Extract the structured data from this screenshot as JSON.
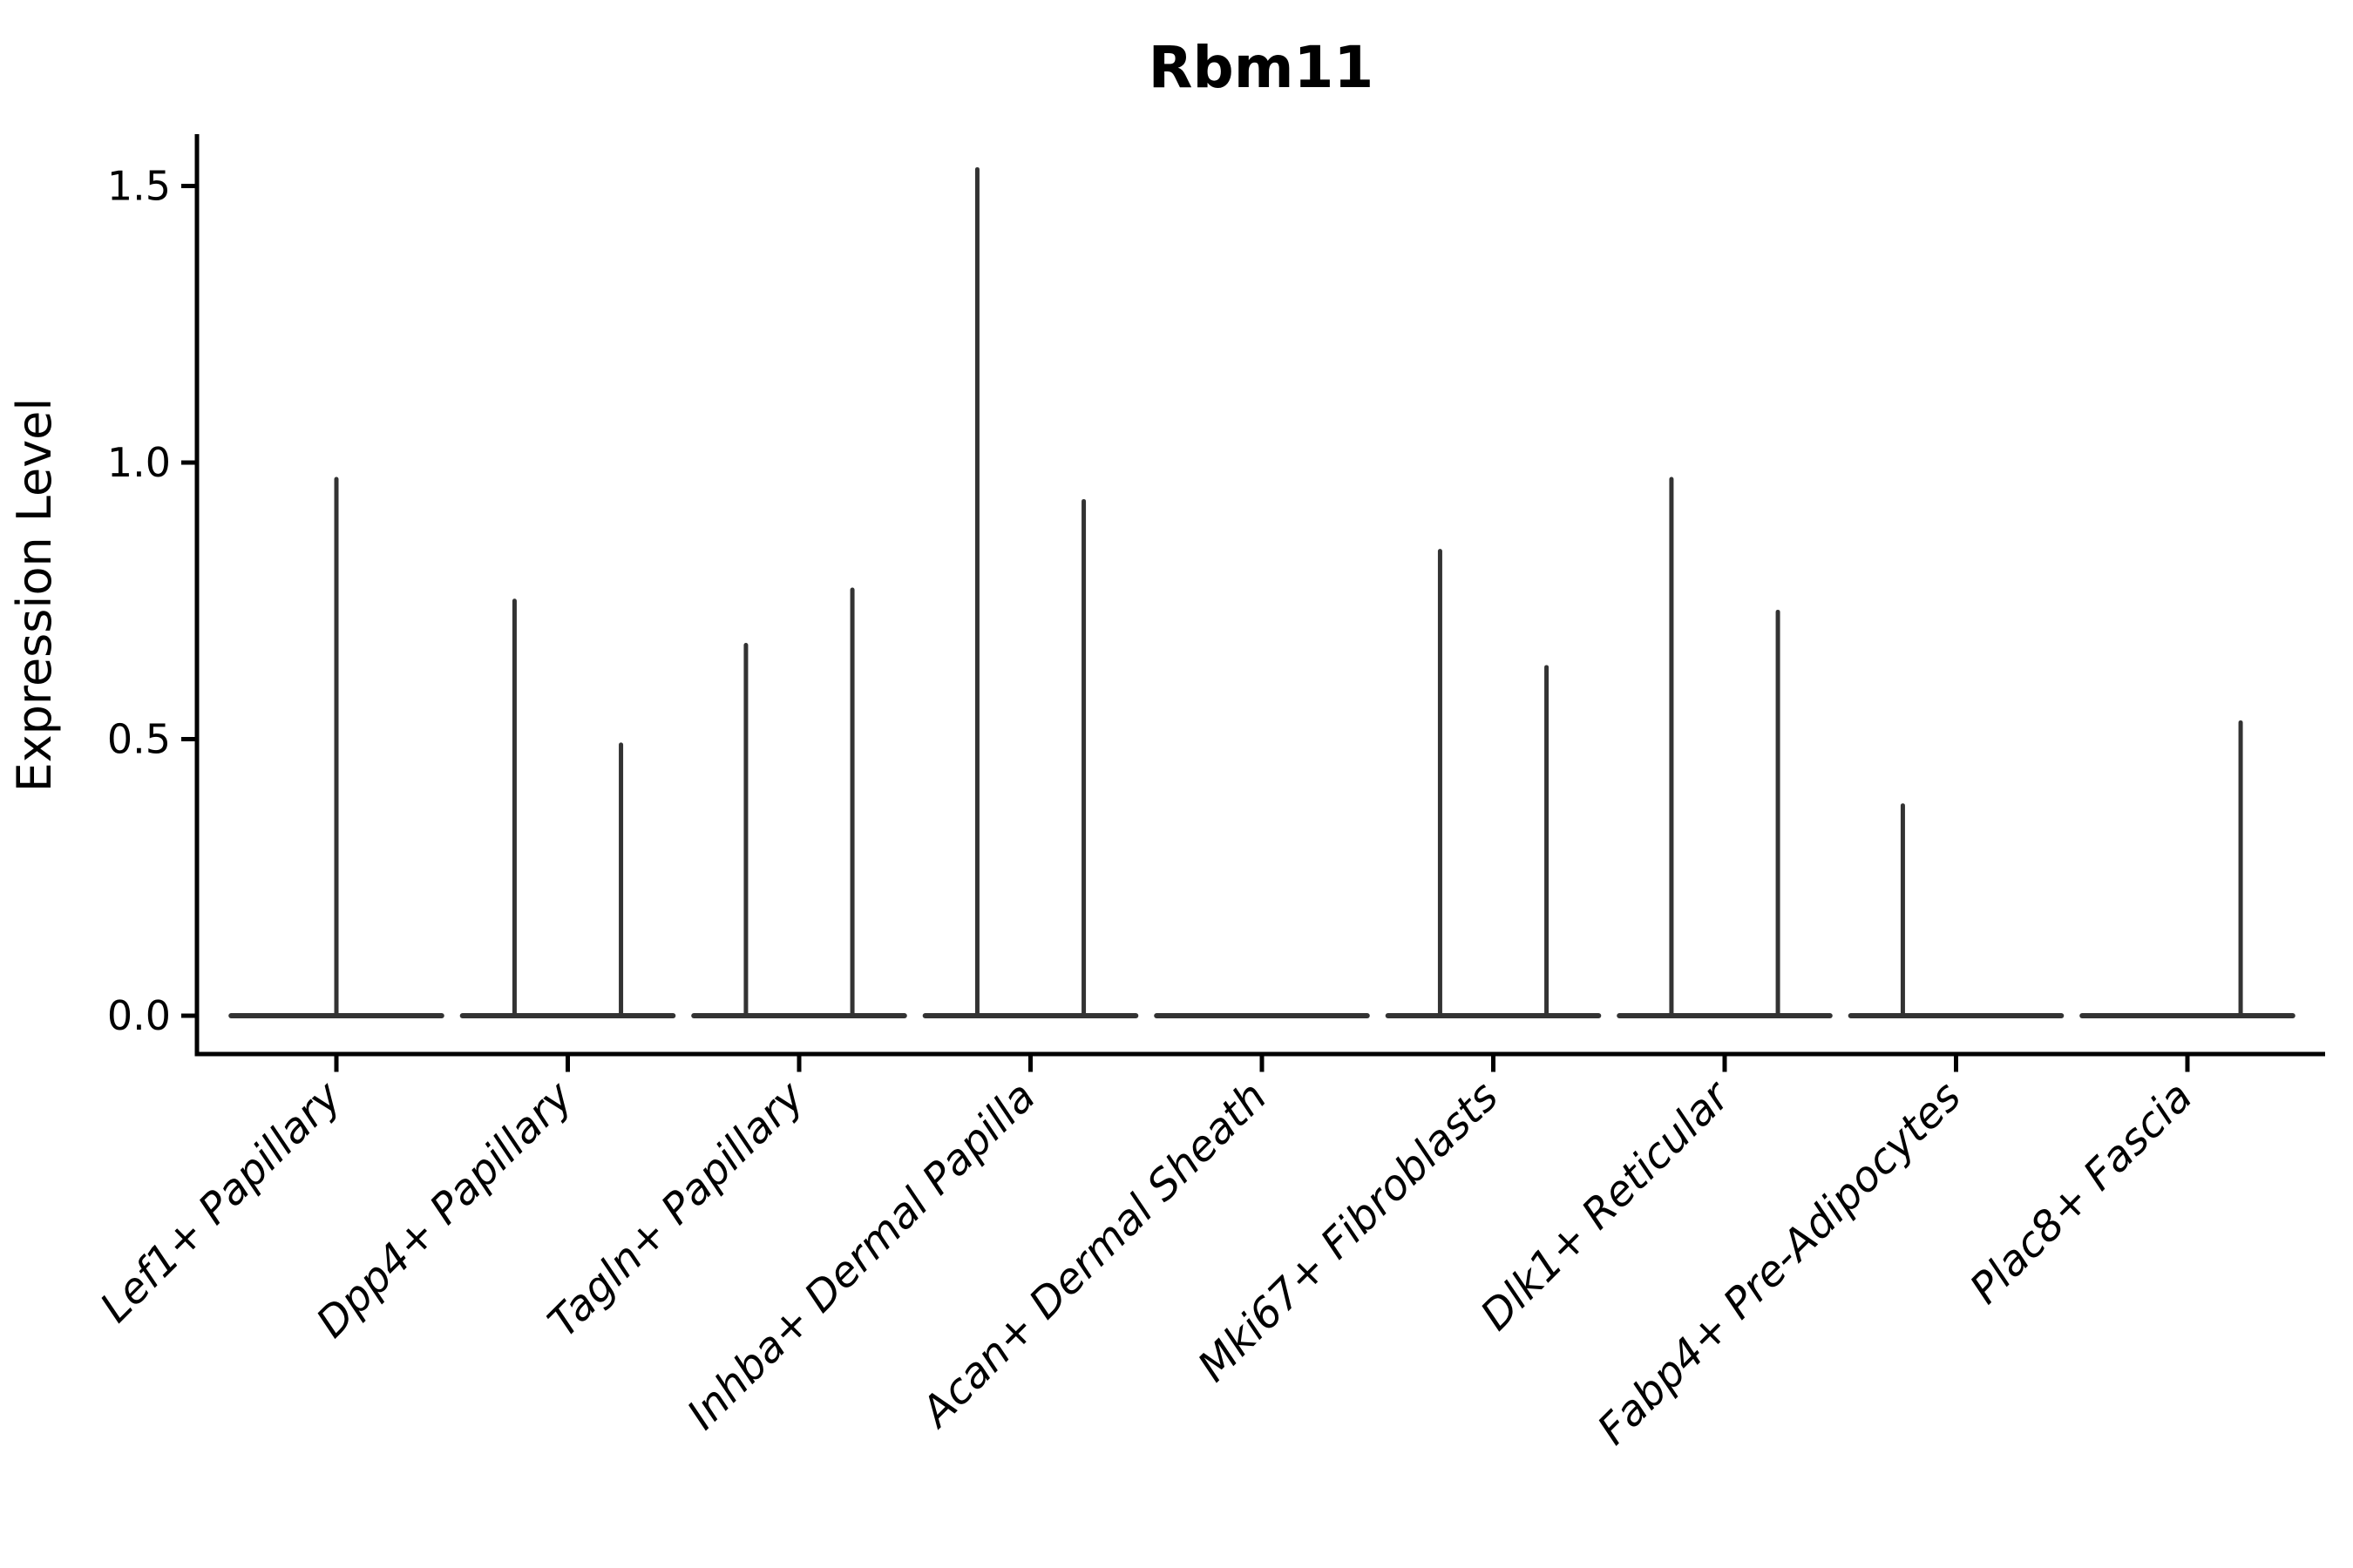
{
  "title": "Rbm11",
  "colors": {
    "violin_line": "#333333",
    "axis": "#000000",
    "text": "#000000",
    "background": "#ffffff"
  },
  "chart_data": {
    "type": "violin",
    "title": "Rbm11",
    "ylabel": "Expression Level",
    "xlabel": "",
    "grid": false,
    "legend": null,
    "ylim": [
      -0.07,
      1.64
    ],
    "yticks": [
      0.0,
      0.5,
      1.0,
      1.5
    ],
    "ytick_labels": [
      "0.0",
      "0.5",
      "1.0",
      "1.5"
    ],
    "categories": [
      "Lef1+ Papillary",
      "Dpp4+ Papillary",
      "Tagln+ Papillary",
      "Inhba+ Dermal Papilla",
      "Acan+ Dermal Sheath",
      "Mki67+ Fibroblasts",
      "Dlk1+ Reticular",
      "Fabp4+ Pre-Adipocytes",
      "Plac8+ Fascia"
    ],
    "baseline_value": 0.0,
    "violin_width_frac": 0.91,
    "spike_offset_frac": 0.23,
    "violins": [
      {
        "label": "Lef1+ Papillary",
        "spikes": [
          {
            "pos": 0,
            "value": 0.97
          }
        ]
      },
      {
        "label": "Dpp4+ Papillary",
        "spikes": [
          {
            "pos": -0.23,
            "value": 0.75
          },
          {
            "pos": 0.23,
            "value": 0.49
          }
        ]
      },
      {
        "label": "Tagln+ Papillary",
        "spikes": [
          {
            "pos": -0.23,
            "value": 0.67
          },
          {
            "pos": 0.23,
            "value": 0.77
          }
        ]
      },
      {
        "label": "Inhba+ Dermal Papilla",
        "spikes": [
          {
            "pos": -0.23,
            "value": 1.53
          },
          {
            "pos": 0.23,
            "value": 0.93
          }
        ]
      },
      {
        "label": "Acan+ Dermal Sheath",
        "spikes": []
      },
      {
        "label": "Mki67+ Fibroblasts",
        "spikes": [
          {
            "pos": -0.23,
            "value": 0.84
          },
          {
            "pos": 0.23,
            "value": 0.63
          }
        ]
      },
      {
        "label": "Dlk1+ Reticular",
        "spikes": [
          {
            "pos": -0.23,
            "value": 0.97
          },
          {
            "pos": 0.23,
            "value": 0.73
          }
        ]
      },
      {
        "label": "Fabp4+ Pre-Adipocytes",
        "spikes": [
          {
            "pos": -0.23,
            "value": 0.38
          }
        ]
      },
      {
        "label": "Plac8+ Fascia",
        "spikes": [
          {
            "pos": 0.23,
            "value": 0.53
          }
        ]
      }
    ]
  }
}
